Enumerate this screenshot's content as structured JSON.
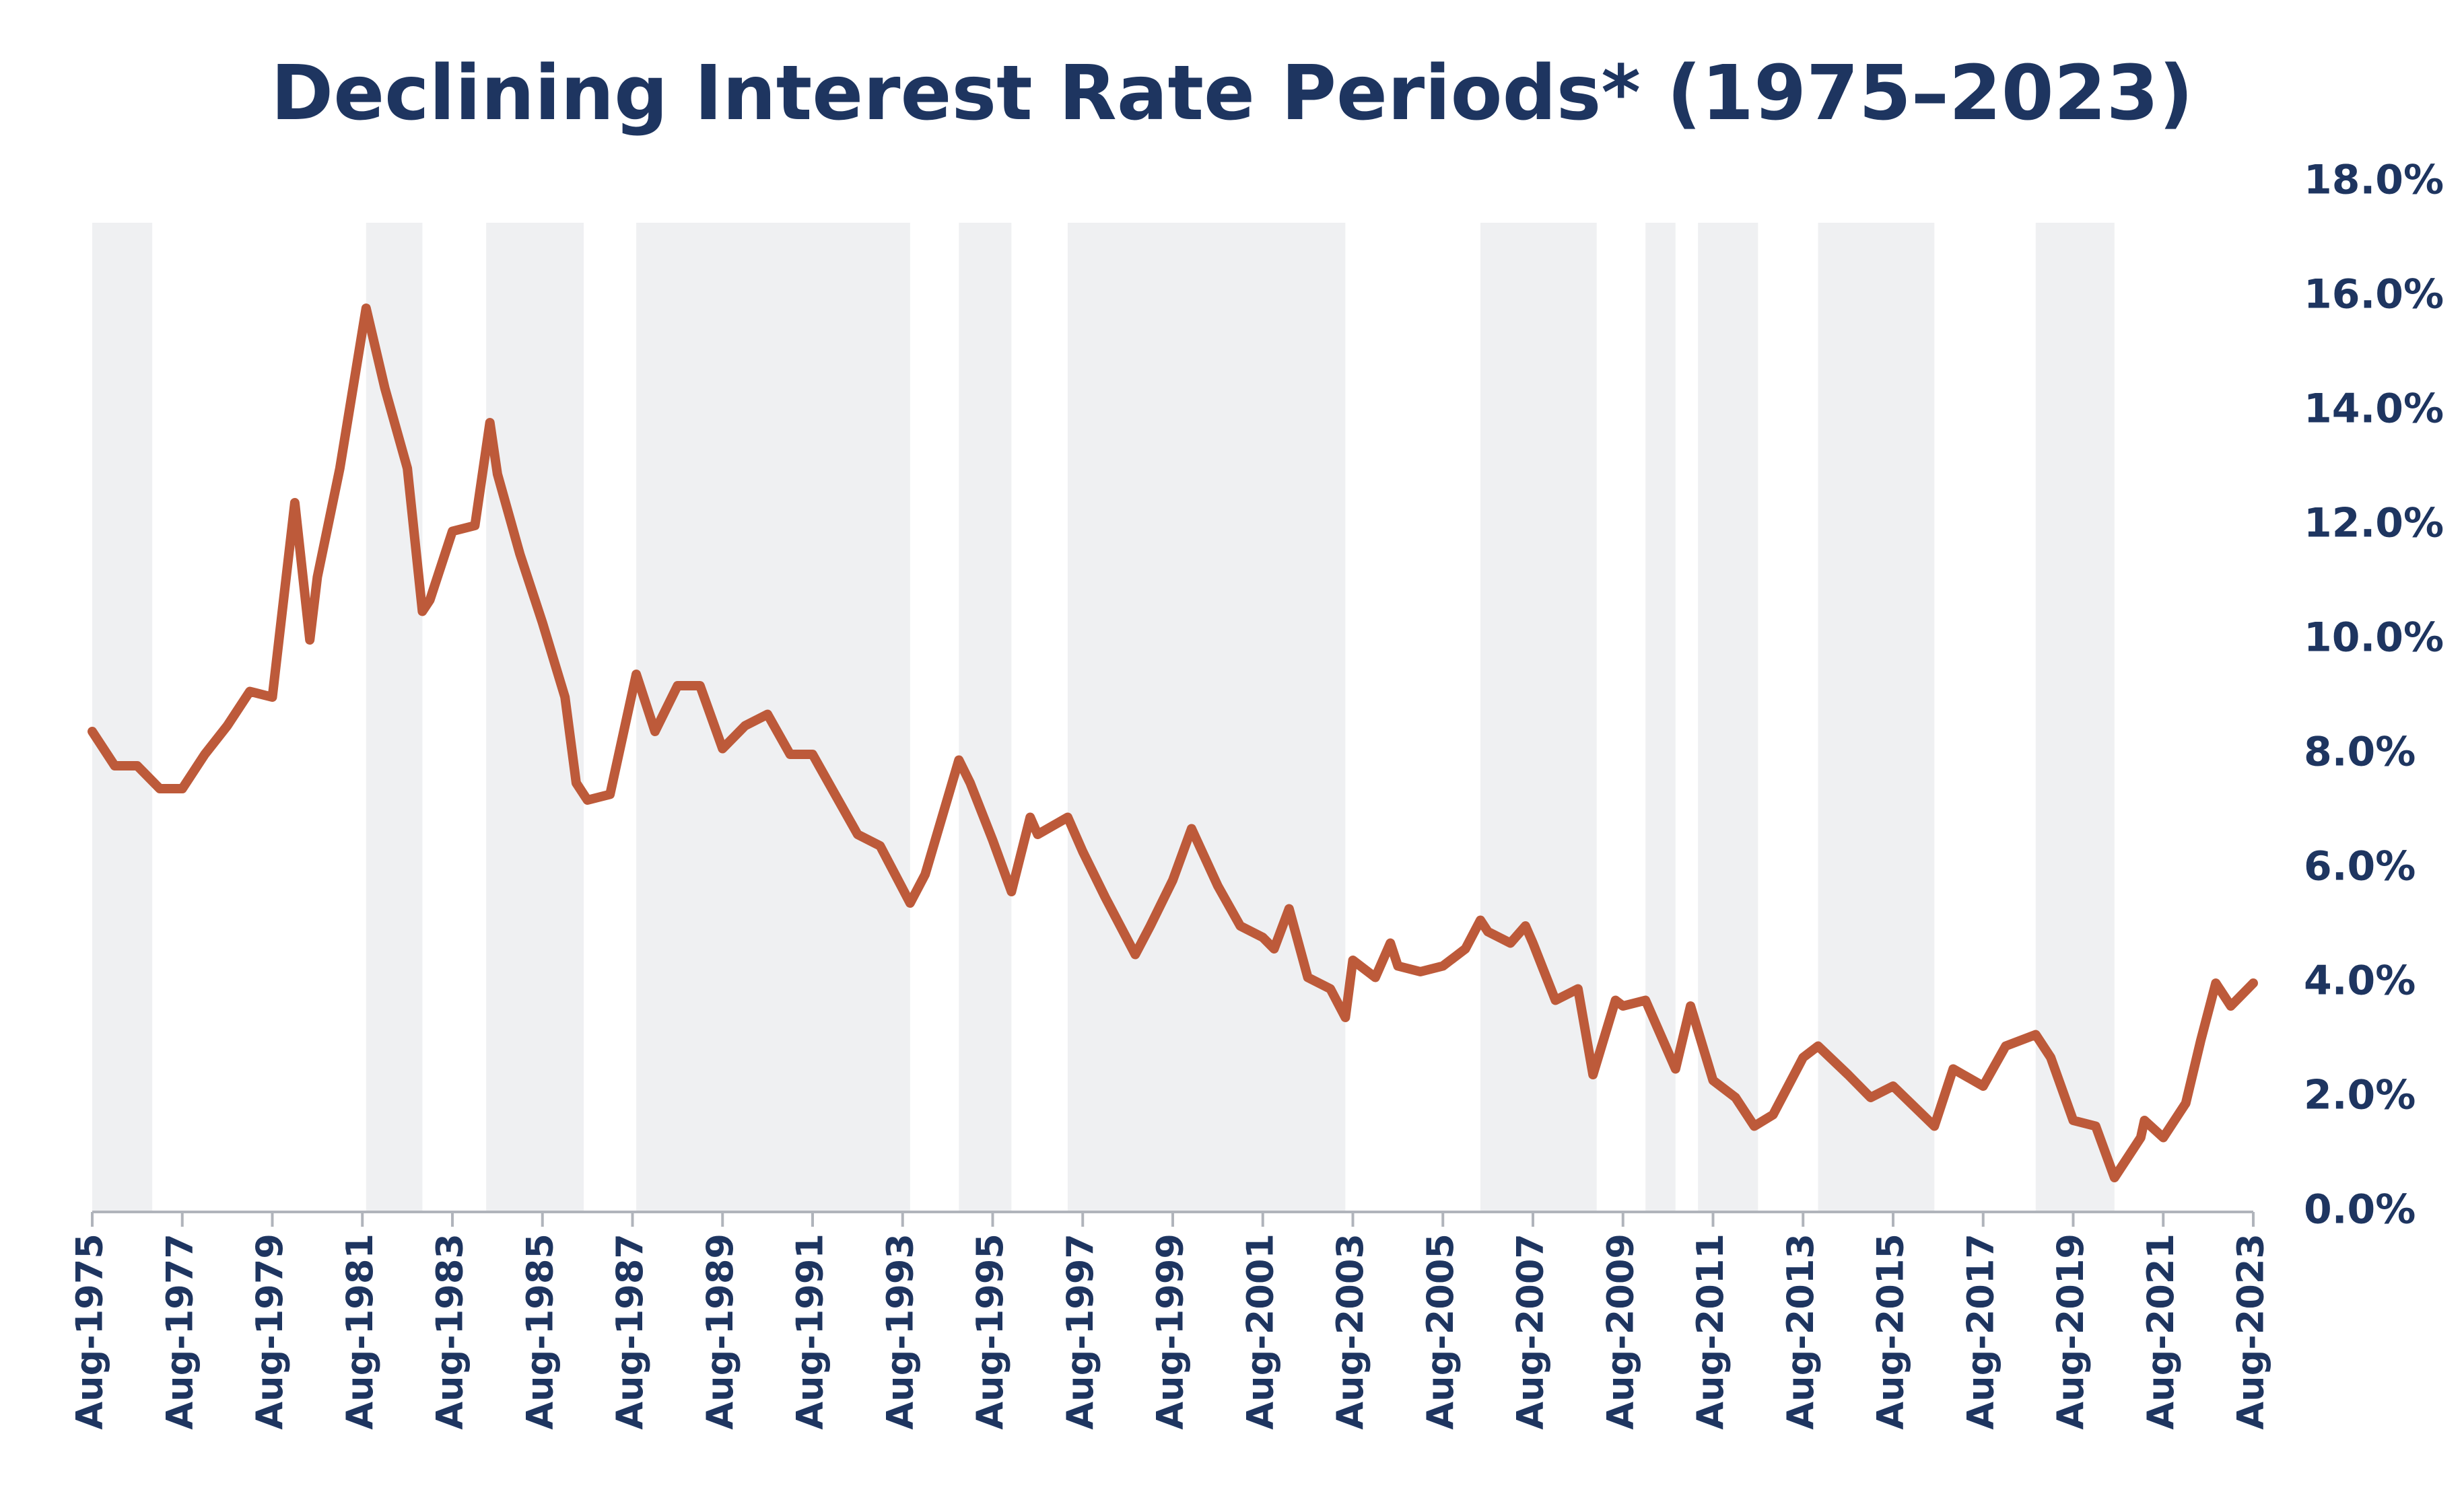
{
  "chart_data": {
    "type": "line",
    "title": "Declining Interest Rate Periods* (1975–2023)",
    "color": "#bd5a3a",
    "band_color": "#eff0f2",
    "shaded_periods": [
      {
        "start": "1975-08",
        "end": "1976-12"
      },
      {
        "start": "1981-09",
        "end": "1982-12"
      },
      {
        "start": "1984-05",
        "end": "1986-07"
      },
      {
        "start": "1987-09",
        "end": "1993-10"
      },
      {
        "start": "1994-11",
        "end": "1996-01"
      },
      {
        "start": "1997-04",
        "end": "2003-06"
      },
      {
        "start": "2006-06",
        "end": "2009-01"
      },
      {
        "start": "2010-02",
        "end": "2010-10"
      },
      {
        "start": "2011-04",
        "end": "2012-08"
      },
      {
        "start": "2013-12",
        "end": "2016-07"
      },
      {
        "start": "2018-10",
        "end": "2020-07"
      }
    ],
    "x": [
      "1975-08",
      "1976-02",
      "1976-08",
      "1977-02",
      "1977-08",
      "1978-02",
      "1978-08",
      "1979-02",
      "1979-08",
      "1980-02",
      "1980-06",
      "1980-08",
      "1981-02",
      "1981-09",
      "1982-02",
      "1982-08",
      "1982-12",
      "1983-02",
      "1983-08",
      "1984-02",
      "1984-06",
      "1984-08",
      "1985-02",
      "1985-08",
      "1986-02",
      "1986-05",
      "1986-08",
      "1987-02",
      "1987-09",
      "1988-02",
      "1988-08",
      "1989-02",
      "1989-08",
      "1990-02",
      "1990-08",
      "1991-02",
      "1991-08",
      "1992-02",
      "1992-08",
      "1993-02",
      "1993-10",
      "1994-02",
      "1994-11",
      "1995-02",
      "1995-08",
      "1996-01",
      "1996-06",
      "1996-08",
      "1997-04",
      "1997-08",
      "1998-02",
      "1998-10",
      "1999-02",
      "1999-08",
      "2000-01",
      "2000-08",
      "2001-02",
      "2001-08",
      "2001-11",
      "2002-03",
      "2002-08",
      "2003-02",
      "2003-06",
      "2003-08",
      "2004-02",
      "2004-06",
      "2004-08",
      "2005-02",
      "2005-08",
      "2006-02",
      "2006-06",
      "2006-08",
      "2007-02",
      "2007-06",
      "2007-08",
      "2008-02",
      "2008-08",
      "2008-12",
      "2009-06",
      "2009-08",
      "2010-02",
      "2010-10",
      "2011-02",
      "2011-08",
      "2012-02",
      "2012-07",
      "2012-12",
      "2013-08",
      "2013-12",
      "2014-08",
      "2015-02",
      "2015-08",
      "2016-07",
      "2016-12",
      "2017-08",
      "2018-02",
      "2018-10",
      "2019-02",
      "2019-08",
      "2020-02",
      "2020-07",
      "2021-02",
      "2021-03",
      "2021-08",
      "2022-02",
      "2022-06",
      "2022-10",
      "2023-02",
      "2023-08"
    ],
    "values": [
      8.4,
      7.8,
      7.8,
      7.4,
      7.4,
      8.0,
      8.5,
      9.1,
      9.0,
      12.4,
      10.0,
      11.1,
      13.0,
      15.8,
      14.4,
      13.0,
      10.5,
      10.7,
      11.9,
      12.0,
      13.8,
      12.9,
      11.5,
      10.3,
      9.0,
      7.5,
      7.2,
      7.3,
      9.4,
      8.4,
      9.2,
      9.2,
      8.1,
      8.5,
      8.7,
      8.0,
      8.0,
      7.3,
      6.6,
      6.4,
      5.4,
      5.9,
      7.9,
      7.5,
      6.5,
      5.6,
      6.9,
      6.6,
      6.9,
      6.3,
      5.5,
      4.5,
      5.0,
      5.8,
      6.7,
      5.7,
      5.0,
      4.8,
      4.6,
      5.3,
      4.1,
      3.9,
      3.4,
      4.4,
      4.1,
      4.7,
      4.3,
      4.2,
      4.3,
      4.6,
      5.1,
      4.9,
      4.7,
      5.0,
      4.7,
      3.7,
      3.9,
      2.4,
      3.7,
      3.6,
      3.7,
      2.5,
      3.6,
      2.3,
      2.0,
      1.5,
      1.7,
      2.7,
      2.9,
      2.4,
      2.0,
      2.2,
      1.5,
      2.5,
      2.2,
      2.9,
      3.1,
      2.7,
      1.6,
      1.5,
      0.6,
      1.3,
      1.6,
      1.3,
      1.9,
      3.0,
      4.0,
      3.6,
      4.0
    ],
    "xlim": [
      "1975-08",
      "2023-08"
    ],
    "xticks": [
      {
        "value": "1975-08",
        "label": "Aug-1975"
      },
      {
        "value": "1977-08",
        "label": "Aug-1977"
      },
      {
        "value": "1979-08",
        "label": "Aug-1979"
      },
      {
        "value": "1981-08",
        "label": "Aug-1981"
      },
      {
        "value": "1983-08",
        "label": "Aug-1983"
      },
      {
        "value": "1985-08",
        "label": "Aug-1985"
      },
      {
        "value": "1987-08",
        "label": "Aug-1987"
      },
      {
        "value": "1989-08",
        "label": "Aug-1989"
      },
      {
        "value": "1991-08",
        "label": "Aug-1991"
      },
      {
        "value": "1993-08",
        "label": "Aug-1993"
      },
      {
        "value": "1995-08",
        "label": "Aug-1995"
      },
      {
        "value": "1997-08",
        "label": "Aug-1997"
      },
      {
        "value": "1999-08",
        "label": "Aug-1999"
      },
      {
        "value": "2001-08",
        "label": "Aug-2001"
      },
      {
        "value": "2003-08",
        "label": "Aug-2003"
      },
      {
        "value": "2005-08",
        "label": "Aug-2005"
      },
      {
        "value": "2007-08",
        "label": "Aug-2007"
      },
      {
        "value": "2009-08",
        "label": "Aug-2009"
      },
      {
        "value": "2011-08",
        "label": "Aug-2011"
      },
      {
        "value": "2013-08",
        "label": "Aug-2013"
      },
      {
        "value": "2015-08",
        "label": "Aug-2015"
      },
      {
        "value": "2017-08",
        "label": "Aug-2017"
      },
      {
        "value": "2019-08",
        "label": "Aug-2019"
      },
      {
        "value": "2021-08",
        "label": "Aug-2021"
      },
      {
        "value": "2023-08",
        "label": "Aug-2023"
      }
    ],
    "ylim": [
      0,
      18
    ],
    "yticks": [
      {
        "value": 0,
        "label": "0.0%"
      },
      {
        "value": 2,
        "label": "2.0%"
      },
      {
        "value": 4,
        "label": "4.0%"
      },
      {
        "value": 6,
        "label": "6.0%"
      },
      {
        "value": 8,
        "label": "8.0%"
      },
      {
        "value": 10,
        "label": "10.0%"
      },
      {
        "value": 12,
        "label": "12.0%"
      },
      {
        "value": 14,
        "label": "14.0%"
      },
      {
        "value": 16,
        "label": "16.0%"
      },
      {
        "value": 18,
        "label": "18.0%"
      }
    ],
    "y_axis_side": "right"
  }
}
